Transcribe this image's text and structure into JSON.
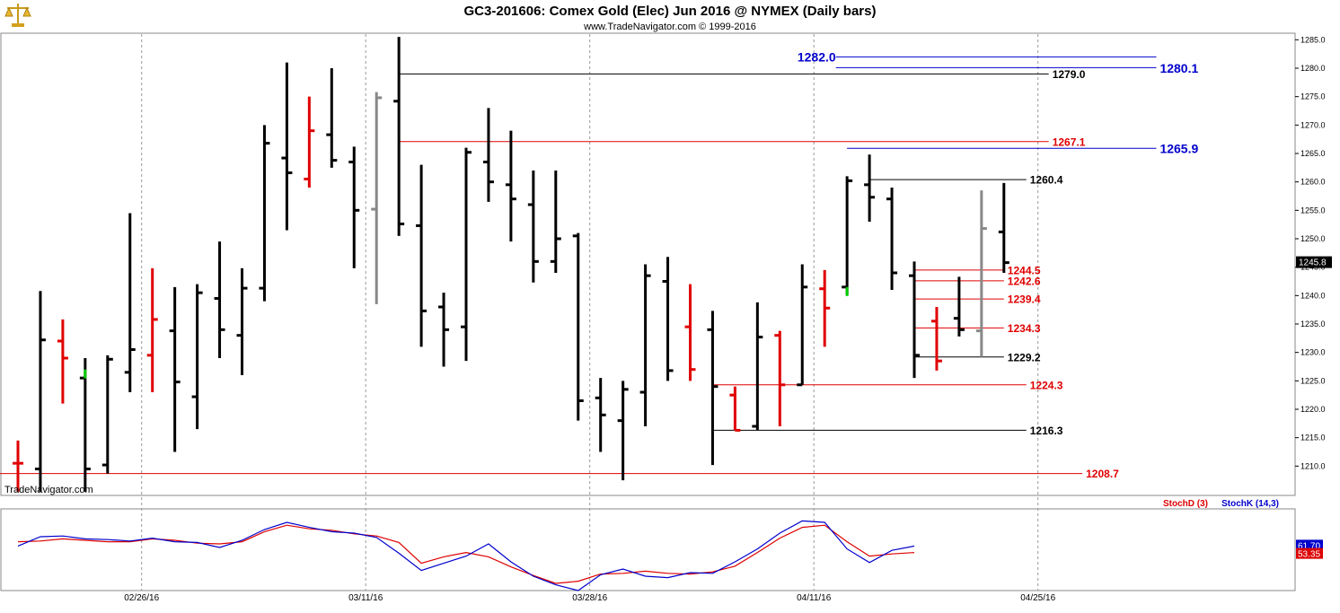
{
  "header": {
    "title": "GC3-201606:  Comex Gold (Elec) Jun 2016 @ NYMEX  (Daily bars)",
    "subtitle": "www.TradeNavigator.com © 1999-2016",
    "watermark": "TradeNavigator.com",
    "logo_icon": "gold-scale-icon"
  },
  "colors": {
    "up": "#000000",
    "down": "#e00000",
    "neutral": "#888888",
    "green": "#00cc00",
    "blue": "#0000cc",
    "red": "#dd0000",
    "grid": "#999999"
  },
  "chart_data": {
    "type": "bar",
    "title": "GC3-201606:  Comex Gold (Elec) Jun 2016 @ NYMEX  (Daily bars)",
    "price_axis": {
      "ylim": [
        1205,
        1286
      ],
      "ticks": [
        "1210.0",
        "1215.0",
        "1220.0",
        "1225.0",
        "1230.0",
        "1235.0",
        "1240.0",
        "1245.0",
        "1250.0",
        "1255.0",
        "1260.0",
        "1265.0",
        "1270.0",
        "1275.0",
        "1280.0",
        "1285.0"
      ],
      "last_price_label": "1245.8",
      "last_price": 1245.8
    },
    "date_axis": {
      "labels": [
        "02/26/16",
        "03/11/16",
        "03/28/16",
        "04/11/16",
        "04/25/16"
      ],
      "label_bar_index": [
        6,
        16,
        26,
        36,
        46
      ]
    },
    "grid": "vertical-dotted",
    "bars": [
      {
        "h": 1214.5,
        "l": 1205.5,
        "o": 1210.5,
        "c": 1210.5,
        "col": "red"
      },
      {
        "h": 1240.8,
        "l": 1205.5,
        "o": 1209.5,
        "c": 1232.2,
        "col": "black"
      },
      {
        "h": 1235.8,
        "l": 1221.0,
        "o": 1232.0,
        "c": 1229.0,
        "col": "red"
      },
      {
        "h": 1229.0,
        "l": 1205.5,
        "o": 1225.5,
        "c": 1209.5,
        "col": "black",
        "lowG": 1227.0
      },
      {
        "h": 1229.5,
        "l": 1208.7,
        "o": 1210.2,
        "c": 1228.8,
        "col": "black"
      },
      {
        "h": 1254.5,
        "l": 1223.0,
        "o": 1226.5,
        "c": 1230.5,
        "col": "black"
      },
      {
        "h": 1244.8,
        "l": 1223.0,
        "o": 1229.5,
        "c": 1235.8,
        "col": "red"
      },
      {
        "h": 1241.5,
        "l": 1212.5,
        "o": 1233.8,
        "c": 1224.8,
        "col": "black"
      },
      {
        "h": 1242.0,
        "l": 1216.5,
        "o": 1222.2,
        "c": 1240.5,
        "col": "black"
      },
      {
        "h": 1249.5,
        "l": 1229.0,
        "o": 1239.5,
        "c": 1234.0,
        "col": "black"
      },
      {
        "h": 1244.8,
        "l": 1226.0,
        "o": 1233.0,
        "c": 1241.3,
        "col": "black"
      },
      {
        "h": 1270.0,
        "l": 1239.0,
        "o": 1241.3,
        "c": 1266.8,
        "col": "black"
      },
      {
        "h": 1281.0,
        "l": 1251.5,
        "o": 1264.2,
        "c": 1261.6,
        "col": "black"
      },
      {
        "h": 1275.0,
        "l": 1259.0,
        "o": 1260.5,
        "c": 1269.0,
        "col": "red"
      },
      {
        "h": 1280.0,
        "l": 1262.5,
        "o": 1268.3,
        "c": 1263.8,
        "col": "black"
      },
      {
        "h": 1266.2,
        "l": 1244.8,
        "o": 1263.5,
        "c": 1255.0,
        "col": "black"
      },
      {
        "h": 1275.8,
        "l": 1238.5,
        "o": 1255.2,
        "c": 1274.8,
        "col": "gray"
      },
      {
        "h": 1285.5,
        "l": 1250.5,
        "o": 1274.2,
        "c": 1252.6,
        "col": "black"
      },
      {
        "h": 1263.0,
        "l": 1231.0,
        "o": 1252.3,
        "c": 1237.3,
        "col": "black"
      },
      {
        "h": 1240.5,
        "l": 1227.5,
        "o": 1238.0,
        "c": 1234.0,
        "col": "black"
      },
      {
        "h": 1266.0,
        "l": 1228.5,
        "o": 1234.5,
        "c": 1265.2,
        "col": "black"
      },
      {
        "h": 1273.0,
        "l": 1256.5,
        "o": 1263.5,
        "c": 1260.0,
        "col": "black"
      },
      {
        "h": 1269.0,
        "l": 1249.5,
        "o": 1259.5,
        "c": 1257.0,
        "col": "black"
      },
      {
        "h": 1262.0,
        "l": 1242.3,
        "o": 1256.0,
        "c": 1246.0,
        "col": "black"
      },
      {
        "h": 1262.0,
        "l": 1244.0,
        "o": 1246.0,
        "c": 1250.0,
        "col": "black"
      },
      {
        "h": 1251.0,
        "l": 1218.0,
        "o": 1250.5,
        "c": 1221.5,
        "col": "black"
      },
      {
        "h": 1225.5,
        "l": 1212.5,
        "o": 1222.0,
        "c": 1219.0,
        "col": "black"
      },
      {
        "h": 1225.0,
        "l": 1207.5,
        "o": 1218.0,
        "c": 1223.5,
        "col": "black"
      },
      {
        "h": 1245.5,
        "l": 1217.0,
        "o": 1223.0,
        "c": 1243.5,
        "col": "black"
      },
      {
        "h": 1246.8,
        "l": 1225.0,
        "o": 1242.5,
        "c": 1226.8,
        "col": "black"
      },
      {
        "h": 1242.0,
        "l": 1225.0,
        "o": 1234.5,
        "c": 1227.0,
        "col": "red"
      },
      {
        "h": 1237.3,
        "l": 1210.2,
        "o": 1234.0,
        "c": 1224.0,
        "col": "black"
      },
      {
        "h": 1224.0,
        "l": 1216.3,
        "o": 1222.5,
        "c": 1216.3,
        "col": "red"
      },
      {
        "h": 1238.8,
        "l": 1216.3,
        "o": 1217.0,
        "c": 1232.7,
        "col": "black"
      },
      {
        "h": 1233.8,
        "l": 1217.0,
        "o": 1233.0,
        "c": 1224.3,
        "col": "red"
      },
      {
        "h": 1245.5,
        "l": 1224.3,
        "o": 1224.3,
        "c": 1241.5,
        "col": "black"
      },
      {
        "h": 1244.5,
        "l": 1231.0,
        "o": 1241.2,
        "c": 1237.8,
        "col": "red"
      },
      {
        "h": 1261.0,
        "l": 1240.2,
        "o": 1241.5,
        "c": 1260.2,
        "col": "black",
        "lowG": 1241.5
      },
      {
        "h": 1264.8,
        "l": 1253.0,
        "o": 1259.5,
        "c": 1257.3,
        "col": "black"
      },
      {
        "h": 1259.0,
        "l": 1241.0,
        "o": 1257.0,
        "c": 1244.0,
        "col": "black"
      },
      {
        "h": 1246.0,
        "l": 1225.5,
        "o": 1243.5,
        "c": 1229.5,
        "col": "black"
      },
      {
        "h": 1238.0,
        "l": 1226.8,
        "o": 1235.5,
        "c": 1228.5,
        "col": "red"
      },
      {
        "h": 1243.3,
        "l": 1232.8,
        "o": 1236.0,
        "c": 1234.0,
        "col": "black"
      },
      {
        "h": 1258.5,
        "l": 1229.2,
        "o": 1233.8,
        "c": 1251.8,
        "col": "gray"
      },
      {
        "h": 1259.8,
        "l": 1244.0,
        "o": 1251.2,
        "c": 1245.8,
        "col": "black"
      }
    ],
    "levels": [
      {
        "label": "1282.0",
        "value": 1282.0,
        "from": 36.5,
        "to": 50.8,
        "color": "blue",
        "label_side": "left",
        "bold": true,
        "size": 14
      },
      {
        "label": "1280.1",
        "value": 1280.1,
        "from": 36.5,
        "to": 50.8,
        "color": "blue",
        "label_side": "right",
        "bold": true,
        "size": 14
      },
      {
        "label": "1279.0",
        "value": 1279.0,
        "from": 17.0,
        "to": 46.0,
        "color": "black",
        "label_side": "right",
        "bold": true,
        "size": 12
      },
      {
        "label": "1267.1",
        "value": 1267.1,
        "from": 17.0,
        "to": 46.0,
        "color": "red",
        "label_side": "right",
        "bold": true,
        "size": 12
      },
      {
        "label": "1265.9",
        "value": 1265.9,
        "from": 37.0,
        "to": 50.8,
        "color": "blue",
        "label_side": "right",
        "bold": true,
        "size": 14
      },
      {
        "label": "1260.4",
        "value": 1260.4,
        "from": 38.0,
        "to": 45.0,
        "color": "black",
        "label_side": "right",
        "bold": true,
        "size": 12
      },
      {
        "label": "1244.5",
        "value": 1244.5,
        "from": 40.0,
        "to": 44.0,
        "color": "red",
        "label_side": "right",
        "bold": true,
        "size": 12
      },
      {
        "label": "1242.6",
        "value": 1242.6,
        "from": 40.0,
        "to": 44.0,
        "color": "red",
        "label_side": "right",
        "bold": true,
        "size": 12
      },
      {
        "label": "1239.4",
        "value": 1239.4,
        "from": 40.0,
        "to": 44.0,
        "color": "red",
        "label_side": "right",
        "bold": true,
        "size": 12
      },
      {
        "label": "1234.3",
        "value": 1234.3,
        "from": 40.0,
        "to": 44.0,
        "color": "red",
        "label_side": "right",
        "bold": true,
        "size": 12
      },
      {
        "label": "1229.2",
        "value": 1229.2,
        "from": 40.0,
        "to": 44.0,
        "color": "black",
        "label_side": "right",
        "bold": true,
        "size": 12
      },
      {
        "label": "1224.3",
        "value": 1224.3,
        "from": 31.0,
        "to": 45.0,
        "color": "red",
        "label_side": "right",
        "bold": true,
        "size": 12
      },
      {
        "label": "1216.3",
        "value": 1216.3,
        "from": 31.0,
        "to": 45.0,
        "color": "black",
        "label_side": "right",
        "bold": true,
        "size": 12
      },
      {
        "label": "1208.7",
        "value": 1208.7,
        "from": -0.8,
        "to": 47.5,
        "color": "red",
        "label_side": "right",
        "bold": true,
        "size": 12
      }
    ],
    "stochastic": {
      "legend": [
        "StochD (3)",
        "StochK (14,3)"
      ],
      "ylim": [
        0,
        100
      ],
      "k_last_label": "61.70",
      "d_last_label": "53.35",
      "k_values": [
        62,
        75,
        76,
        72,
        71,
        69,
        73,
        68,
        67,
        60,
        70,
        85,
        95,
        88,
        82,
        80,
        74,
        52,
        28,
        38,
        48,
        65,
        40,
        20,
        8,
        0,
        22,
        30,
        20,
        18,
        25,
        24,
        40,
        58,
        80,
        97,
        95,
        58,
        39,
        56,
        62
      ],
      "d_values": [
        68,
        69,
        72,
        70,
        68,
        68,
        72,
        70,
        66,
        65,
        68,
        82,
        91,
        86,
        84,
        79,
        76,
        67,
        38,
        47,
        53,
        47,
        33,
        21,
        10,
        13,
        23,
        24,
        27,
        24,
        23,
        26,
        34,
        53,
        73,
        88,
        91,
        68,
        48,
        51,
        53
      ],
      "x_start": 0
    }
  }
}
